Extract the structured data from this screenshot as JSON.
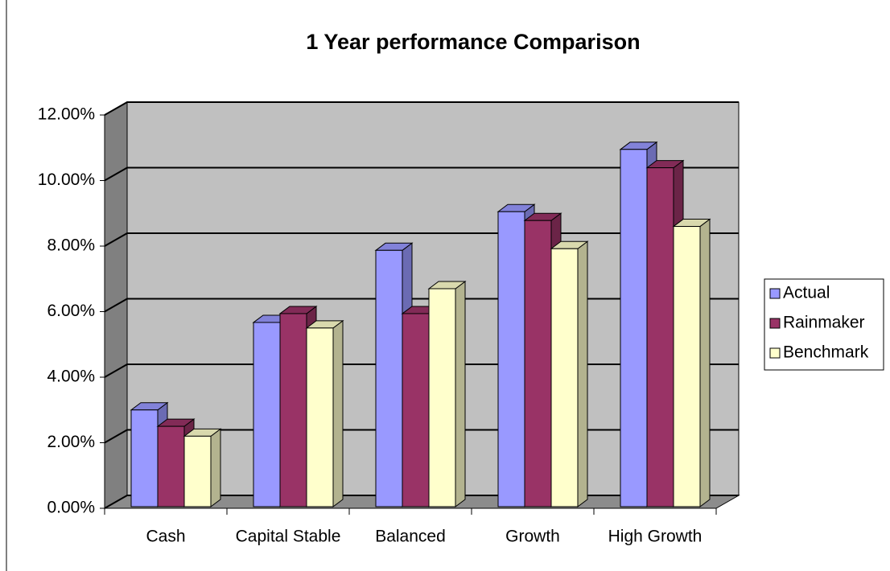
{
  "chart_data": {
    "type": "bar3d",
    "title": "1 Year performance  Comparison",
    "categories": [
      "Cash",
      "Capital Stable",
      "Balanced",
      "Growth",
      "High Growth"
    ],
    "series": [
      {
        "name": "Actual",
        "color": "#9999ff",
        "values": [
          3.0,
          5.67,
          7.87,
          9.05,
          10.95
        ]
      },
      {
        "name": "Rainmaker",
        "color": "#993366",
        "values": [
          2.5,
          5.94,
          5.94,
          8.78,
          10.39
        ]
      },
      {
        "name": "Benchmark",
        "color": "#ffffcc",
        "values": [
          2.2,
          5.5,
          6.7,
          7.92,
          8.6
        ]
      }
    ],
    "ylim": [
      0,
      12
    ],
    "yticks": [
      {
        "value": 0,
        "label": "0.00%"
      },
      {
        "value": 2,
        "label": "2.00%"
      },
      {
        "value": 4,
        "label": "4.00%"
      },
      {
        "value": 6,
        "label": "6.00%"
      },
      {
        "value": 8,
        "label": "8.00%"
      },
      {
        "value": 10,
        "label": "10.00%"
      },
      {
        "value": 12,
        "label": "12.00%"
      }
    ],
    "grid": true,
    "legend": "right"
  }
}
